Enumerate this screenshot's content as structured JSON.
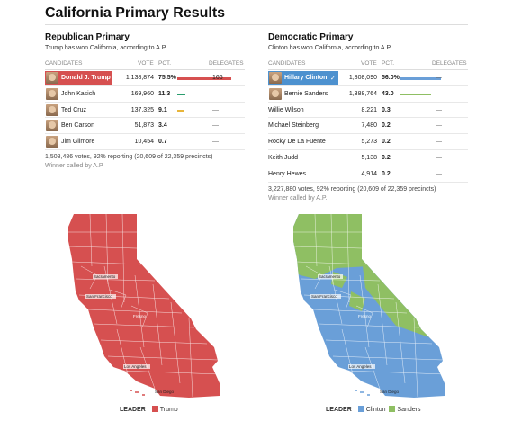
{
  "title": "California Primary Results",
  "republican": {
    "heading": "Republican Primary",
    "subtitle": "Trump has won California, according to A.P.",
    "columns": {
      "candidates": "CANDIDATES",
      "vote": "VOTE",
      "pct": "PCT.",
      "delegates": "DELEGATES"
    },
    "candidates": [
      {
        "name": "Donald J. Trump",
        "votes": "1,138,874",
        "pct": "75.5%",
        "pct_value": 75.5,
        "delegates": "166",
        "winner": true
      },
      {
        "name": "John Kasich",
        "votes": "169,960",
        "pct": "11.3",
        "pct_value": 11.3,
        "delegates": "—"
      },
      {
        "name": "Ted Cruz",
        "votes": "137,325",
        "pct": "9.1",
        "pct_value": 9.1,
        "delegates": "—"
      },
      {
        "name": "Ben Carson",
        "votes": "51,873",
        "pct": "3.4",
        "pct_value": 3.4,
        "delegates": "—"
      },
      {
        "name": "Jim Gilmore",
        "votes": "10,454",
        "pct": "0.7",
        "pct_value": 0.7,
        "delegates": "—"
      }
    ],
    "summary": "1,508,486 votes, 92% reporting (20,609 of 22,359 precincts)",
    "called": "Winner called by A.P."
  },
  "democratic": {
    "heading": "Democratic Primary",
    "subtitle": "Clinton has won California, according to A.P.",
    "columns": {
      "candidates": "CANDIDATES",
      "vote": "VOTE",
      "pct": "PCT.",
      "delegates": "DELEGATES"
    },
    "candidates": [
      {
        "name": "Hillary Clinton",
        "votes": "1,808,090",
        "pct": "56.0%",
        "pct_value": 56.0,
        "delegates": "—",
        "winner": true
      },
      {
        "name": "Bernie Sanders",
        "votes": "1,388,764",
        "pct": "43.0",
        "pct_value": 43.0,
        "delegates": "—"
      },
      {
        "name": "Willie Wilson",
        "votes": "8,221",
        "pct": "0.3",
        "pct_value": 0.3,
        "delegates": "—"
      },
      {
        "name": "Michael Steinberg",
        "votes": "7,480",
        "pct": "0.2",
        "pct_value": 0.2,
        "delegates": "—"
      },
      {
        "name": "Rocky De La Fuente",
        "votes": "5,273",
        "pct": "0.2",
        "pct_value": 0.2,
        "delegates": "—"
      },
      {
        "name": "Keith Judd",
        "votes": "5,138",
        "pct": "0.2",
        "pct_value": 0.2,
        "delegates": "—"
      },
      {
        "name": "Henry Hewes",
        "votes": "4,914",
        "pct": "0.2",
        "pct_value": 0.2,
        "delegates": "—"
      }
    ],
    "summary": "3,227,880 votes, 92% reporting (20,609 of 22,359 precincts)",
    "called": "Winner called by A.P."
  },
  "cities": {
    "sacramento": "Sacramento",
    "san_francisco": "San Francisco",
    "fresno": "Fresno",
    "los_angeles": "Los Angeles",
    "san_diego": "San Diego"
  },
  "legends": {
    "rep": {
      "label": "LEADER",
      "items": [
        {
          "name": "Trump"
        }
      ]
    },
    "dem": {
      "label": "LEADER",
      "items": [
        {
          "name": "Clinton"
        },
        {
          "name": "Sanders"
        }
      ]
    }
  },
  "colors": {
    "trump": "#d65050",
    "clinton": "#6a9fd8",
    "sanders": "#8fbf63",
    "kasich": "#2a9d6e",
    "cruz": "#e8b53a",
    "border": "#ffffff"
  }
}
